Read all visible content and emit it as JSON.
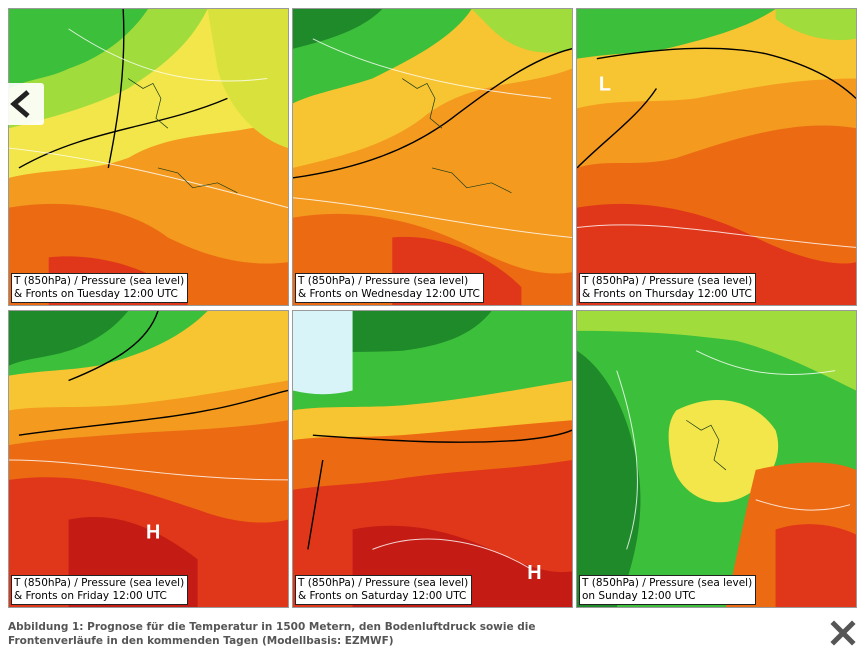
{
  "panels": [
    {
      "line1": "T (850hPa) / Pressure (sea level)",
      "line2": "& Fronts on Tuesday 12:00 UTC"
    },
    {
      "line1": "T (850hPa) / Pressure (sea level)",
      "line2": "& Fronts on Wednesday 12:00 UTC"
    },
    {
      "line1": "T (850hPa) / Pressure (sea level)",
      "line2": "& Fronts on Thursday 12:00 UTC"
    },
    {
      "line1": "T (850hPa) / Pressure (sea level)",
      "line2": "& Fronts on Friday 12:00 UTC"
    },
    {
      "line1": "T (850hPa) / Pressure (sea level)",
      "line2": "& Fronts on Saturday 12:00 UTC"
    },
    {
      "line1": "T (850hPa) / Pressure (sea level)",
      "line2": "on Sunday 12:00 UTC"
    }
  ],
  "map_labels": {
    "thu_low": "L",
    "fri_high": "H",
    "sat_high": "H"
  },
  "caption": {
    "line1": "Abbildung 1: Prognose für die Temperatur in 1500 Metern, den Bodenluftdruck sowie die",
    "line2": "Frontenverläufe in den kommenden Tagen (Modellbasis: EZMWF)"
  },
  "icons": {
    "prev": "chevron-left-icon",
    "close": "close-icon"
  },
  "colors": {
    "deep_green": "#1f8a2a",
    "green": "#3cbf3a",
    "light_green": "#9fdc3c",
    "yellow": "#f2e64a",
    "yellow_orange": "#f7c531",
    "orange": "#f39a1f",
    "dark_orange": "#ec6a12",
    "red": "#e0361a",
    "dark_red": "#c41c14",
    "ice": "#d8f4f8"
  }
}
